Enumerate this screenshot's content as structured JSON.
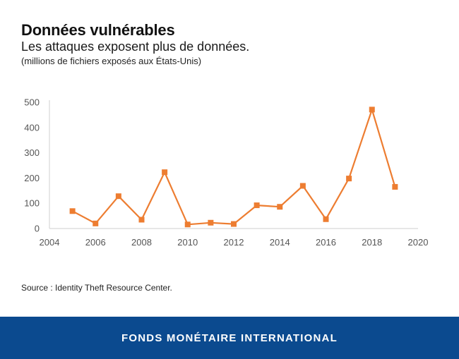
{
  "header": {
    "title": "Données vulnérables",
    "subtitle": "Les attaques exposent plus de données.",
    "units": "(millions de fichiers exposés aux États-Unis)"
  },
  "chart_data": {
    "type": "line",
    "title": "Données vulnérables",
    "xlabel": "",
    "ylabel": "",
    "xlim": [
      2004,
      2020
    ],
    "ylim": [
      0,
      500
    ],
    "x_ticks": [
      2004,
      2006,
      2008,
      2010,
      2012,
      2014,
      2016,
      2018,
      2020
    ],
    "y_ticks": [
      0,
      100,
      200,
      300,
      400,
      500
    ],
    "grid": false,
    "series": [
      {
        "name": "Fichiers exposés",
        "color": "#ed7d31",
        "x": [
          2005,
          2006,
          2007,
          2008,
          2009,
          2010,
          2011,
          2012,
          2013,
          2014,
          2015,
          2016,
          2017,
          2018,
          2019
        ],
        "values": [
          69,
          20,
          128,
          35,
          223,
          16,
          23,
          18,
          92,
          86,
          169,
          37,
          198,
          471,
          165
        ]
      }
    ]
  },
  "source": "Source : Identity Theft Resource Center.",
  "footer": {
    "label": "FONDS MONÉTAIRE INTERNATIONAL",
    "color": "#0b4a8f"
  }
}
